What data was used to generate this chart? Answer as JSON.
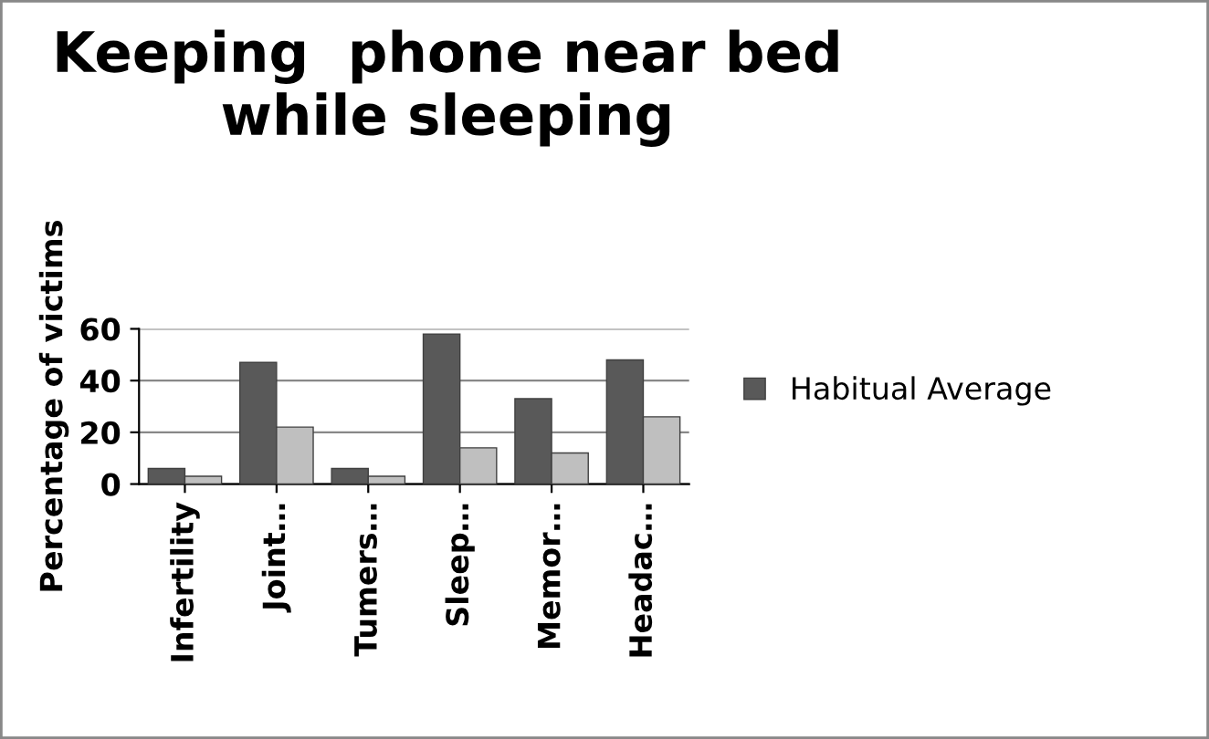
{
  "chart_data": {
    "type": "bar",
    "title": "Keeping  phone near bed while sleeping",
    "ylabel": "Percentage of victims",
    "categories": [
      "Infertility",
      "Joint…",
      "Tumers…",
      "Sleep…",
      "Memor…",
      "Headac…"
    ],
    "series": [
      {
        "name": "Habitual Average",
        "color": "#595959",
        "values": [
          6,
          47,
          6,
          58,
          33,
          48
        ]
      },
      {
        "color": "#bfbfbf",
        "values": [
          3,
          22,
          3,
          14,
          12,
          26
        ]
      }
    ],
    "ylim": [
      0,
      60
    ],
    "yticks": [
      0,
      20,
      40,
      60
    ],
    "grid": "y",
    "legend": "right"
  }
}
